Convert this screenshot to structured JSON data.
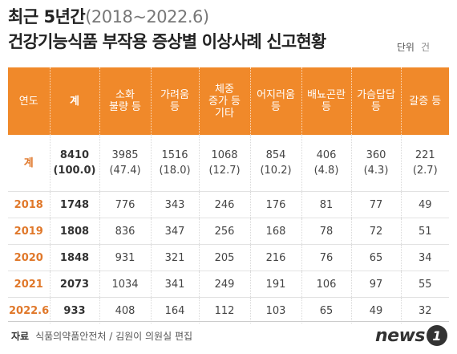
{
  "title": {
    "line1_main": "최근 5년간",
    "line1_period": "(2018~2022.6)",
    "line2": "건강기능식품 부작용 증상별 이상사례 신고현황"
  },
  "unit": {
    "label": "단위",
    "value": "건"
  },
  "source": {
    "label": "자료",
    "text": "식품의약품안전처 / 김원이 의원실 편집"
  },
  "logo": {
    "word": "news",
    "mark": "1"
  },
  "colors": {
    "header_bg": "#f0892a",
    "year_text": "#e0782a"
  },
  "chart_data": {
    "type": "table",
    "columns": [
      [
        "연도"
      ],
      [
        "계"
      ],
      [
        "소화",
        "불량 등"
      ],
      [
        "가려움",
        "등"
      ],
      [
        "체중",
        "증가 등",
        "기타"
      ],
      [
        "어지러움",
        "등"
      ],
      [
        "배뇨곤란",
        "등"
      ],
      [
        "가슴답답",
        "등"
      ],
      [
        "갈증 등"
      ]
    ],
    "total_row": [
      [
        "계"
      ],
      [
        "8410",
        "(100.0)"
      ],
      [
        "3985",
        "(47.4)"
      ],
      [
        "1516",
        "(18.0)"
      ],
      [
        "1068",
        "(12.7)"
      ],
      [
        "854",
        "(10.2)"
      ],
      [
        "406",
        "(4.8)"
      ],
      [
        "360",
        "(4.3)"
      ],
      [
        "221",
        "(2.7)"
      ]
    ],
    "rows": [
      [
        "2018",
        "1748",
        "776",
        "343",
        "246",
        "176",
        "81",
        "77",
        "49"
      ],
      [
        "2019",
        "1808",
        "836",
        "347",
        "256",
        "168",
        "78",
        "72",
        "51"
      ],
      [
        "2020",
        "1848",
        "931",
        "321",
        "205",
        "216",
        "76",
        "65",
        "34"
      ],
      [
        "2021",
        "2073",
        "1034",
        "341",
        "249",
        "191",
        "106",
        "97",
        "55"
      ],
      [
        "2022.6",
        "933",
        "408",
        "164",
        "112",
        "103",
        "65",
        "49",
        "32"
      ]
    ]
  }
}
